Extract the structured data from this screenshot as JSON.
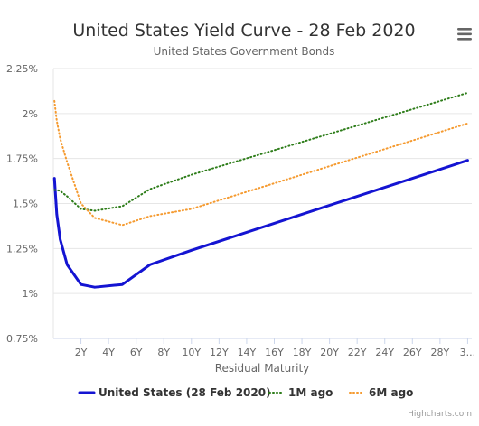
{
  "chart_data": {
    "type": "line",
    "title": "United States Yield Curve - 28 Feb 2020",
    "subtitle": "United States Government Bonds",
    "xlabel": "Residual Maturity",
    "ylabel": "",
    "ylim": [
      0.75,
      2.25
    ],
    "xlim": [
      0,
      30.3
    ],
    "y_ticks": [
      {
        "value": 0.75,
        "label": "0.75%"
      },
      {
        "value": 1.0,
        "label": "1%"
      },
      {
        "value": 1.25,
        "label": "1.25%"
      },
      {
        "value": 1.5,
        "label": "1.5%"
      },
      {
        "value": 1.75,
        "label": "1.75%"
      },
      {
        "value": 2.0,
        "label": "2%"
      },
      {
        "value": 2.25,
        "label": "2.25%"
      }
    ],
    "x_ticks": [
      {
        "value": 2,
        "label": "2Y"
      },
      {
        "value": 4,
        "label": "4Y"
      },
      {
        "value": 6,
        "label": "6Y"
      },
      {
        "value": 8,
        "label": "8Y"
      },
      {
        "value": 10,
        "label": "10Y"
      },
      {
        "value": 12,
        "label": "12Y"
      },
      {
        "value": 14,
        "label": "14Y"
      },
      {
        "value": 16,
        "label": "16Y"
      },
      {
        "value": 18,
        "label": "18Y"
      },
      {
        "value": 20,
        "label": "20Y"
      },
      {
        "value": 22,
        "label": "22Y"
      },
      {
        "value": 24,
        "label": "24Y"
      },
      {
        "value": 26,
        "label": "26Y"
      },
      {
        "value": 28,
        "label": "28Y"
      },
      {
        "value": 30,
        "label": "3..."
      }
    ],
    "grid": "horizontal",
    "legend_position": "bottom-center",
    "series": [
      {
        "name": "United States (28 Feb 2020)",
        "color": "#1414d2",
        "style": "solid",
        "points": [
          [
            0.08,
            1.64
          ],
          [
            0.25,
            1.44
          ],
          [
            0.5,
            1.3
          ],
          [
            1,
            1.16
          ],
          [
            2,
            1.05
          ],
          [
            3,
            1.035
          ],
          [
            5,
            1.05
          ],
          [
            7,
            1.16
          ],
          [
            10,
            1.24
          ],
          [
            30,
            1.74
          ]
        ]
      },
      {
        "name": "1M ago",
        "color": "#2e7d1a",
        "style": "dotted",
        "points": [
          [
            0.08,
            1.575
          ],
          [
            0.25,
            1.575
          ],
          [
            0.5,
            1.57
          ],
          [
            1,
            1.54
          ],
          [
            2,
            1.47
          ],
          [
            3,
            1.46
          ],
          [
            5,
            1.485
          ],
          [
            7,
            1.58
          ],
          [
            10,
            1.66
          ],
          [
            30,
            2.115
          ]
        ]
      },
      {
        "name": "6M ago",
        "color": "#f59a2f",
        "style": "dotted",
        "points": [
          [
            0.08,
            2.07
          ],
          [
            0.25,
            1.96
          ],
          [
            0.5,
            1.86
          ],
          [
            1,
            1.73
          ],
          [
            2,
            1.5
          ],
          [
            3,
            1.42
          ],
          [
            5,
            1.38
          ],
          [
            7,
            1.43
          ],
          [
            10,
            1.47
          ],
          [
            30,
            1.945
          ]
        ]
      }
    ]
  },
  "credits": "Highcharts.com",
  "menu_icon": "hamburger-menu-icon"
}
